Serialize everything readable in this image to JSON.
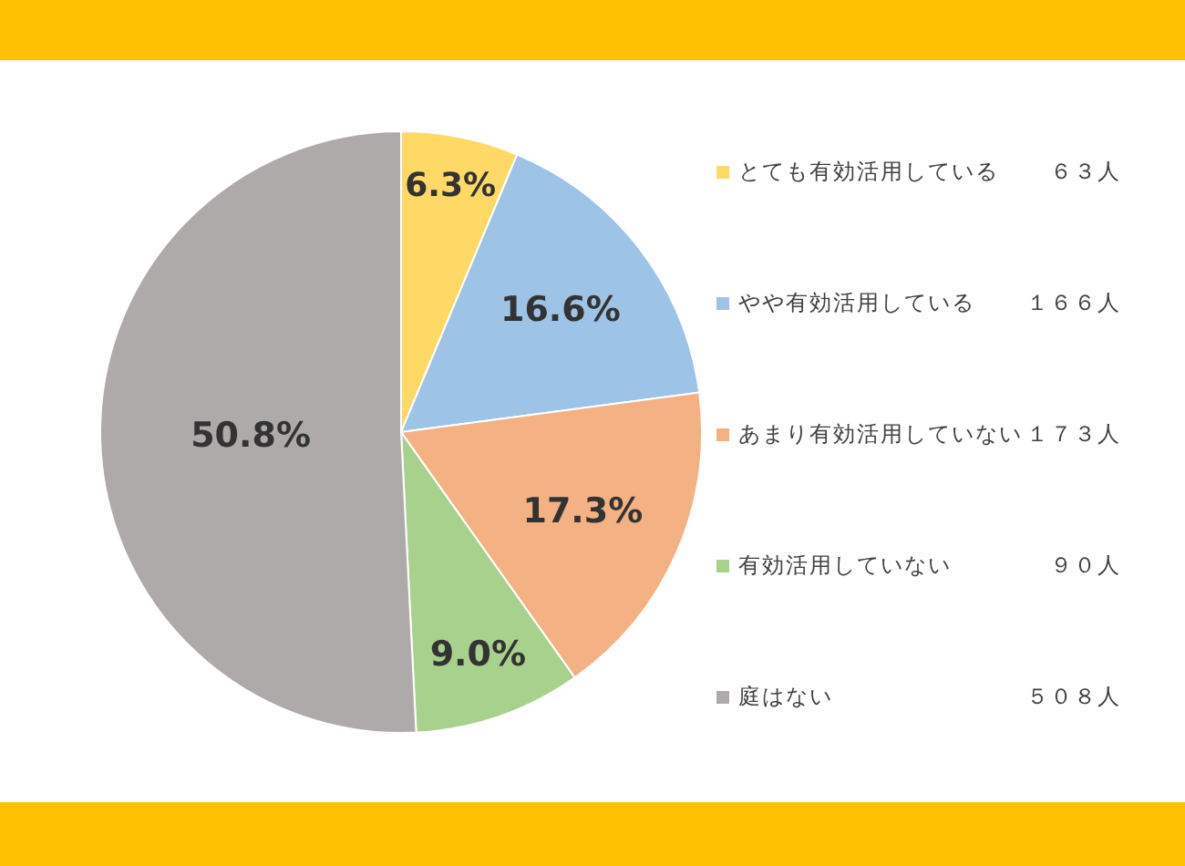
{
  "chart_data": {
    "type": "pie",
    "categories": [
      "とても有効活用している",
      "やや有効活用している",
      "あまり有効活用していない",
      "有効活用していない",
      "庭はない"
    ],
    "values": [
      6.3,
      16.6,
      17.3,
      9.0,
      50.8
    ],
    "value_labels": [
      "6.3%",
      "16.6%",
      "17.3%",
      "9.0%",
      "50.8%"
    ],
    "colors": [
      "#ffd966",
      "#9dc3e6",
      "#f4b183",
      "#a9d18e",
      "#aeaaaa"
    ],
    "annotations": [
      "６３人",
      "１６６人",
      "１７３人",
      "９０人",
      "５０８人"
    ],
    "legend": "right"
  }
}
